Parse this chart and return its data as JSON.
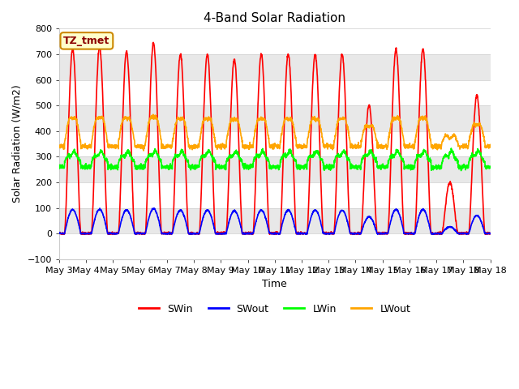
{
  "title": "4-Band Solar Radiation",
  "ylabel": "Solar Radiation (W/m2)",
  "xlabel": "Time",
  "annotation": "TZ_tmet",
  "ylim": [
    -100,
    800
  ],
  "colors": {
    "SWin": "#ff0000",
    "SWout": "#0000ff",
    "LWin": "#00ff00",
    "LWout": "#ffa500"
  },
  "legend_labels": [
    "SWin",
    "SWout",
    "LWin",
    "LWout"
  ],
  "xtick_labels": [
    "May 3",
    "May 4",
    "May 5",
    "May 6",
    "May 7",
    "May 8",
    "May 9",
    "May 10",
    "May 11",
    "May 12",
    "May 13",
    "May 14",
    "May 15",
    "May 16",
    "May 17",
    "May 18"
  ],
  "bg_color": "#ffffff",
  "plot_bg_color": "#ffffff",
  "band_colors": [
    "#ffffff",
    "#e8e8e8"
  ],
  "yticks": [
    -100,
    0,
    100,
    200,
    300,
    400,
    500,
    600,
    700,
    800
  ],
  "days": 16,
  "points_per_day": 144,
  "title_fontsize": 11,
  "label_fontsize": 9,
  "tick_fontsize": 8,
  "peak_map": [
    720,
    725,
    710,
    745,
    700,
    700,
    680,
    700,
    700,
    700,
    700,
    500,
    720,
    720,
    200,
    540
  ]
}
